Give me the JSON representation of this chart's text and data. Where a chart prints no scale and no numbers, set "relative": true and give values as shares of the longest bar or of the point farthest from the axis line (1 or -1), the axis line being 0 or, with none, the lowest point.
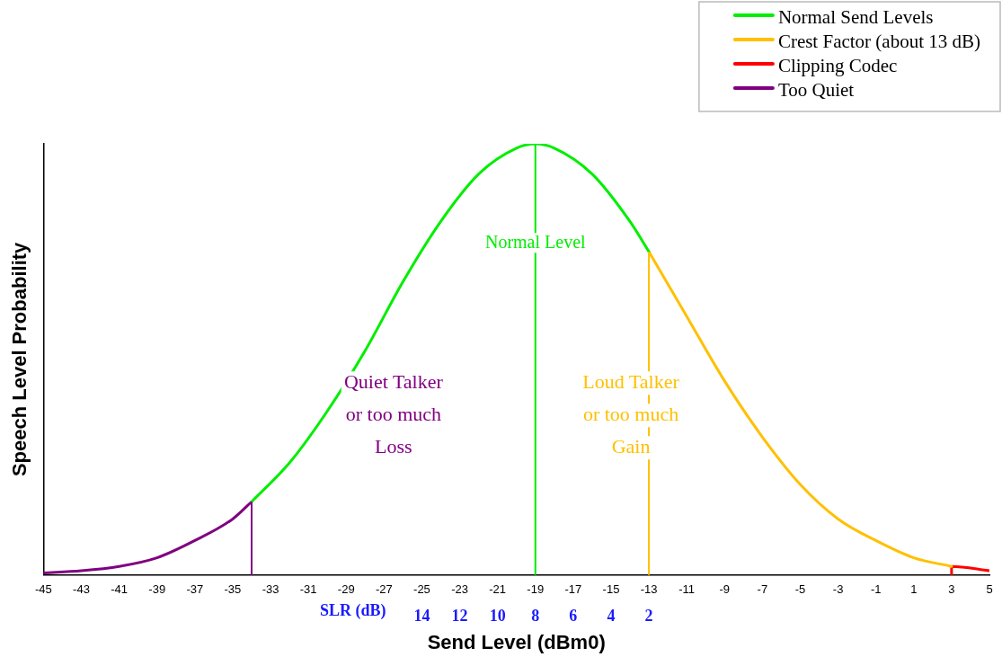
{
  "chart_data": {
    "type": "line",
    "relative": true,
    "xlabel": "Send Level (dBm0)",
    "ylabel": "Speech Level Probability",
    "x2label": "SLR (dB)",
    "legend": "top right",
    "xlim": [
      -45,
      5
    ],
    "xticks": [
      -45,
      -43,
      -41,
      -39,
      -37,
      -35,
      -33,
      -31,
      -29,
      -27,
      -25,
      -23,
      -21,
      -19,
      -17,
      -15,
      -13,
      -11,
      -9,
      -7,
      -5,
      -3,
      -1,
      1,
      3,
      5
    ],
    "x2lim": [
      34,
      -16
    ],
    "x2ticks": [
      14,
      12,
      10,
      8,
      6,
      4,
      2
    ],
    "series": [
      {
        "name": "Normal Send Levels",
        "color": "#00ee00",
        "x": [
          -34,
          -32,
          -30,
          -28,
          -26,
          -24,
          -22,
          -20,
          -19,
          -18,
          -16,
          -14,
          -13
        ],
        "values": [
          0.17,
          0.26,
          0.38,
          0.52,
          0.68,
          0.82,
          0.93,
          0.99,
          1,
          0.99,
          0.93,
          0.82,
          0.75
        ]
      },
      {
        "name": "Crest Factor (about 13 dB)",
        "color": "#ffc000",
        "x": [
          -13,
          -11,
          -9,
          -7,
          -5,
          -3,
          -1,
          1,
          3
        ],
        "values": [
          0.75,
          0.6,
          0.45,
          0.32,
          0.21,
          0.13,
          0.08,
          0.04,
          0.02
        ]
      },
      {
        "name": "Clipping Codec",
        "color": "#ff0000",
        "x": [
          3,
          3,
          5
        ],
        "values": [
          0,
          0.02,
          0.01
        ]
      },
      {
        "name": "Too Quiet",
        "color": "#800080",
        "x": [
          -45,
          -43,
          -41,
          -39,
          -37,
          -35,
          -34
        ],
        "values": [
          0.005,
          0.01,
          0.02,
          0.04,
          0.08,
          0.13,
          0.17
        ]
      }
    ],
    "ref_lines": [
      {
        "axis": "x",
        "value": -34,
        "color": "#800080"
      },
      {
        "axis": "x",
        "value": -19,
        "label": "Normal Level",
        "color": "#00ee00"
      },
      {
        "axis": "x",
        "value": -13,
        "color": "#ffc000"
      }
    ],
    "annotations": [
      "Quiet Talker\nor too much\nLoss",
      "Loud Talker\nor too much\nGain"
    ]
  }
}
